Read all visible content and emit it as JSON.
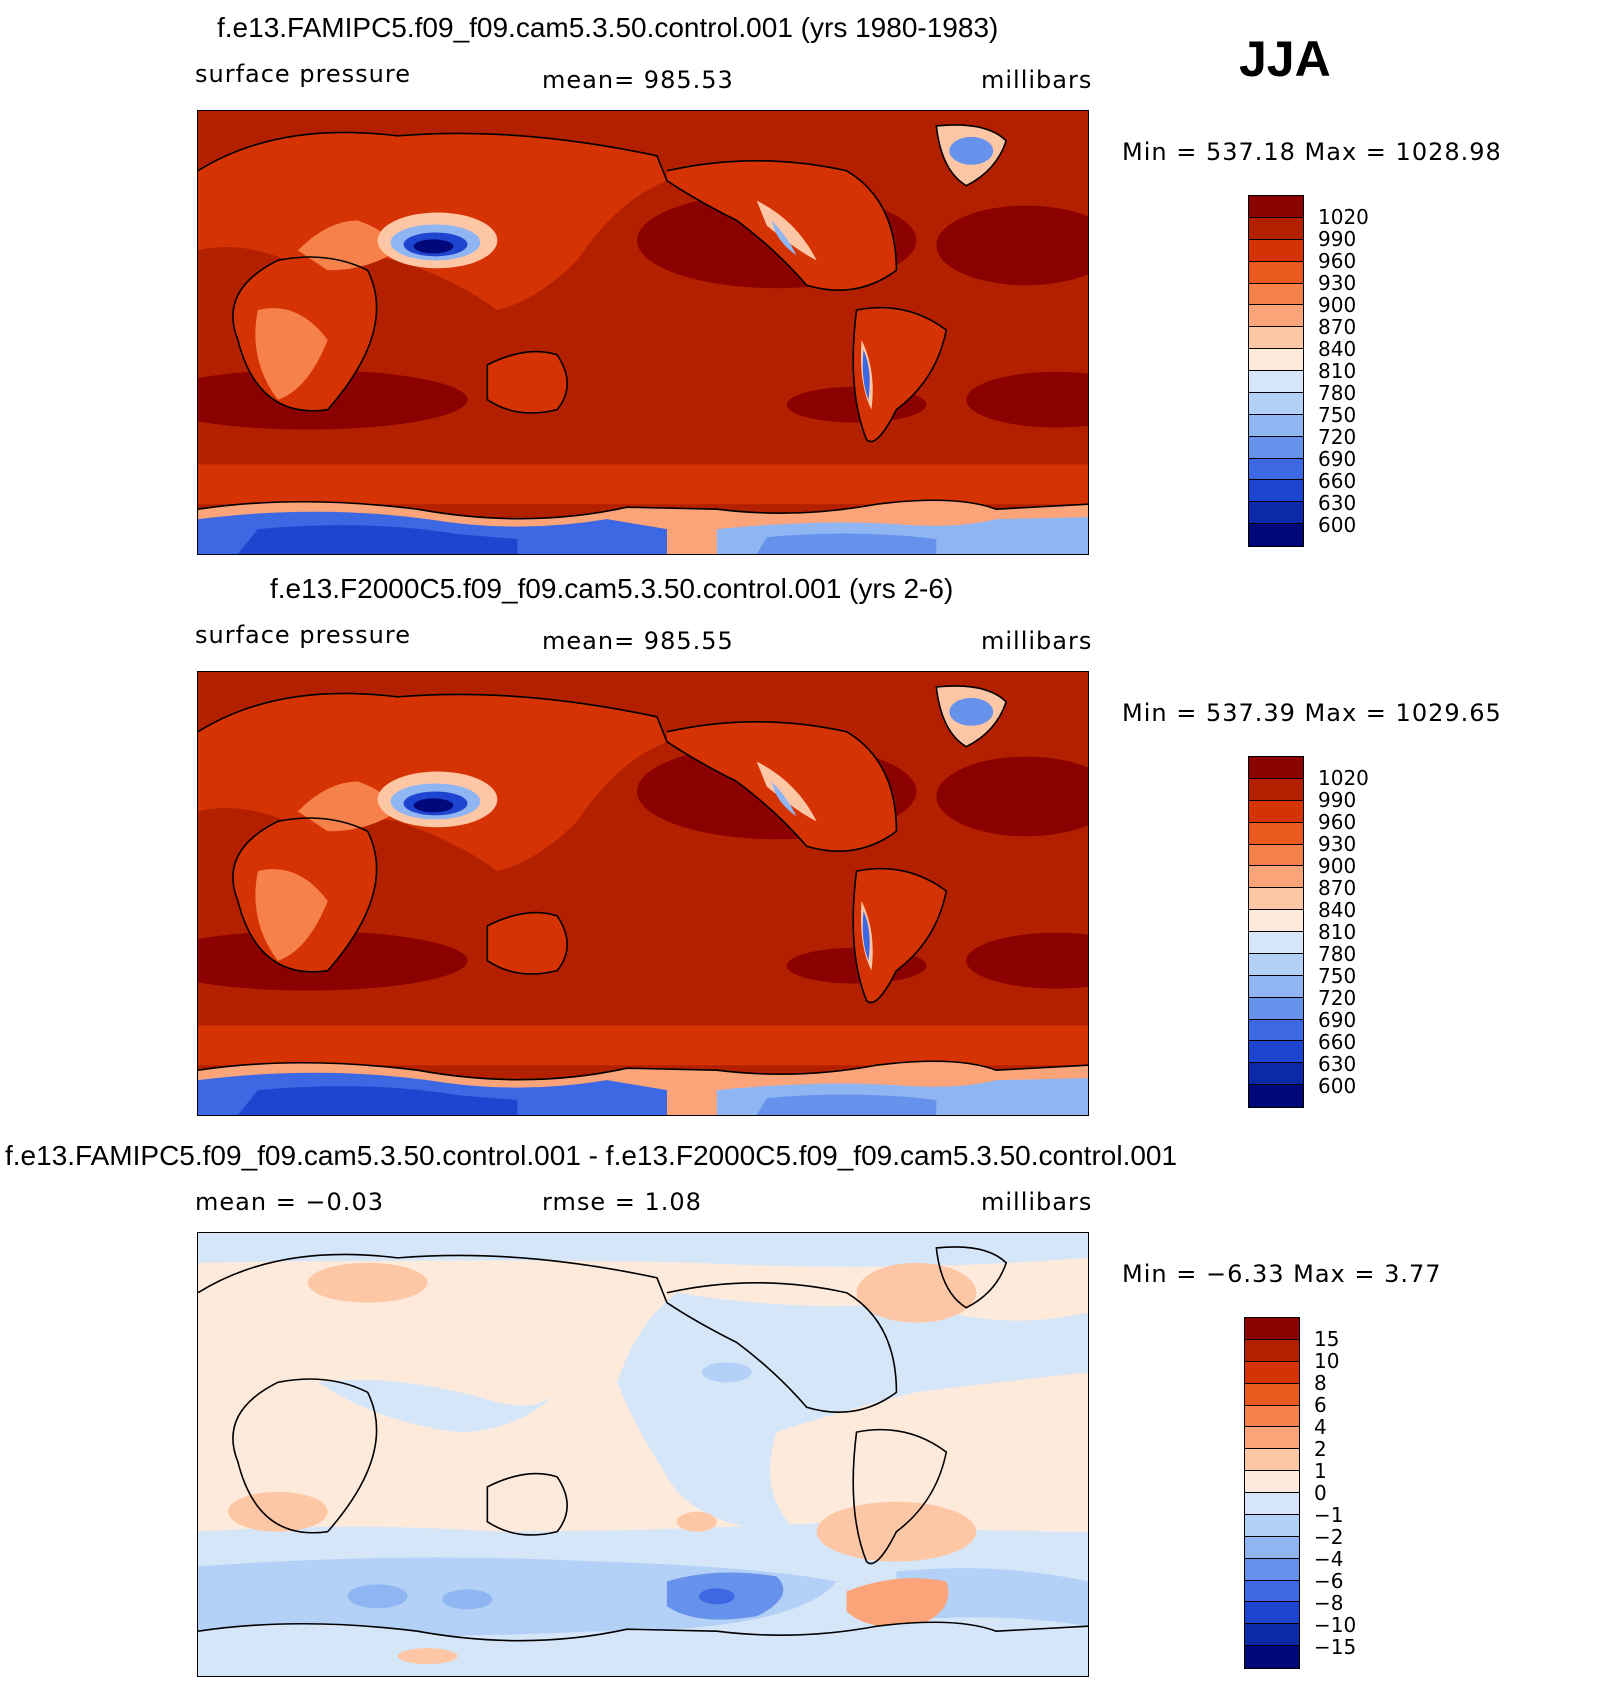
{
  "season": "JJA",
  "panels": [
    {
      "title": "f.e13.FAMIPC5.f09_f09.cam5.3.50.control.001 (yrs 1980-1983)",
      "left_label": "surface pressure",
      "center_label": "mean=  985.53",
      "right_label": "millibars",
      "minmax": "Min  =  537.18  Max  =  1028.98",
      "colorbar_labels": [
        "1020",
        "990",
        "960",
        "930",
        "900",
        "870",
        "840",
        "810",
        "780",
        "750",
        "720",
        "690",
        "660",
        "630",
        "600"
      ]
    },
    {
      "title": "f.e13.F2000C5.f09_f09.cam5.3.50.control.001 (yrs 2-6)",
      "left_label": "surface pressure",
      "center_label": "mean=  985.55",
      "right_label": "millibars",
      "minmax": "Min  =  537.39  Max  =  1029.65",
      "colorbar_labels": [
        "1020",
        "990",
        "960",
        "930",
        "900",
        "870",
        "840",
        "810",
        "780",
        "750",
        "720",
        "690",
        "660",
        "630",
        "600"
      ]
    },
    {
      "title": "f.e13.FAMIPC5.f09_f09.cam5.3.50.control.001 - f.e13.F2000C5.f09_f09.cam5.3.50.control.001",
      "left_label": "mean  =   −0.03",
      "center_label": "rmse  =     1.08",
      "right_label": "millibars",
      "minmax": "Min  =    −6.33  Max  =     3.77",
      "colorbar_labels": [
        "15",
        "10",
        "8",
        "6",
        "4",
        "2",
        "1",
        "0",
        "−1",
        "−2",
        "−4",
        "−6",
        "−8",
        "−10",
        "−15"
      ]
    }
  ],
  "colors": {
    "abs_scale": [
      "#8b0000",
      "#b22000",
      "#d63304",
      "#ea5a1e",
      "#f7814a",
      "#fba47a",
      "#fdc7a6",
      "#feeada",
      "#d6e6f9",
      "#b3d0f6",
      "#8fb5f2",
      "#6792ec",
      "#3d68e4",
      "#1e45d0",
      "#0c2aa8",
      "#00087a"
    ],
    "diff_scale": [
      "#8b0000",
      "#b22000",
      "#d63304",
      "#ea5a1e",
      "#f7814a",
      "#fba47a",
      "#fdc7a6",
      "#feeada",
      "#d6e6f9",
      "#b3d0f6",
      "#8fb5f2",
      "#6792ec",
      "#3d68e4",
      "#1e45d0",
      "#0c2aa8",
      "#00087a"
    ]
  }
}
